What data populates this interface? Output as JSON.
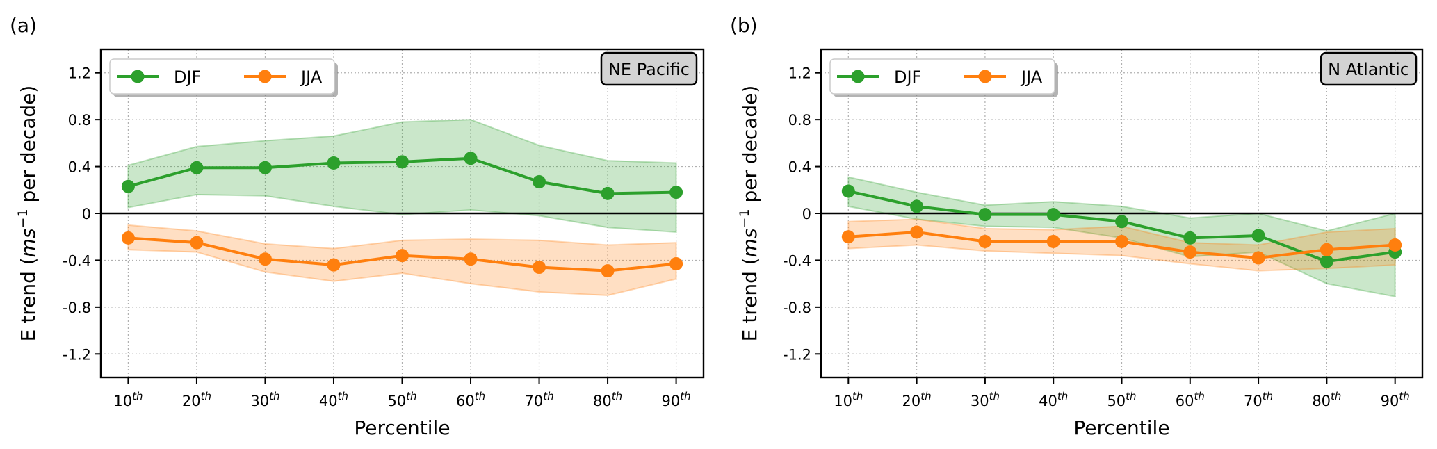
{
  "figure": {
    "panels": [
      "a",
      "b"
    ]
  },
  "chart_data": [
    {
      "type": "line",
      "panel_label": "(a)",
      "annotation": "NE Pacific",
      "title": "",
      "xlabel": "Percentile",
      "ylabel": "E trend (ms⁻¹ per decade)",
      "ylabel_parts": {
        "prefix": "E trend (",
        "unit_main": "ms",
        "unit_sup": "−1",
        "suffix": " per decade)"
      },
      "categories": [
        "10",
        "20",
        "30",
        "40",
        "50",
        "60",
        "70",
        "80",
        "90"
      ],
      "category_suffix": "th",
      "ylim": [
        -1.4,
        1.4
      ],
      "yticks": [
        1.2,
        0.8,
        0.4,
        0,
        -0.4,
        -0.8,
        -1.2
      ],
      "ytick_labels": [
        "1.2",
        "0.8",
        "0.4",
        "0",
        "-0.4",
        "-0.8",
        "-1.2"
      ],
      "grid": true,
      "zero_line": true,
      "legend": {
        "placement": "upper-left",
        "entries": [
          "DJF",
          "JJA"
        ]
      },
      "series": [
        {
          "name": "DJF",
          "color": "#2ca02c",
          "values": [
            0.23,
            0.39,
            0.39,
            0.43,
            0.44,
            0.47,
            0.27,
            0.17,
            0.18
          ],
          "band_upper": [
            0.41,
            0.57,
            0.62,
            0.66,
            0.78,
            0.8,
            0.58,
            0.45,
            0.43
          ],
          "band_lower": [
            0.05,
            0.16,
            0.15,
            0.06,
            -0.01,
            0.03,
            -0.02,
            -0.12,
            -0.16
          ]
        },
        {
          "name": "JJA",
          "color": "#ff7f0e",
          "values": [
            -0.21,
            -0.25,
            -0.39,
            -0.44,
            -0.36,
            -0.39,
            -0.46,
            -0.49,
            -0.43
          ],
          "band_upper": [
            -0.1,
            -0.15,
            -0.26,
            -0.3,
            -0.23,
            -0.22,
            -0.23,
            -0.27,
            -0.25
          ],
          "band_lower": [
            -0.31,
            -0.33,
            -0.5,
            -0.58,
            -0.51,
            -0.6,
            -0.67,
            -0.7,
            -0.56
          ]
        }
      ]
    },
    {
      "type": "line",
      "panel_label": "(b)",
      "annotation": "N Atlantic",
      "title": "",
      "xlabel": "Percentile",
      "ylabel": "E trend (ms⁻¹ per decade)",
      "ylabel_parts": {
        "prefix": "E trend (",
        "unit_main": "ms",
        "unit_sup": "−1",
        "suffix": " per decade)"
      },
      "categories": [
        "10",
        "20",
        "30",
        "40",
        "50",
        "60",
        "70",
        "80",
        "90"
      ],
      "category_suffix": "th",
      "ylim": [
        -1.4,
        1.4
      ],
      "yticks": [
        1.2,
        0.8,
        0.4,
        0,
        -0.4,
        -0.8,
        -1.2
      ],
      "ytick_labels": [
        "1.2",
        "0.8",
        "0.4",
        "0",
        "-0.4",
        "-0.8",
        "-1.2"
      ],
      "grid": true,
      "zero_line": true,
      "legend": {
        "placement": "upper-left",
        "entries": [
          "DJF",
          "JJA"
        ]
      },
      "series": [
        {
          "name": "DJF",
          "color": "#2ca02c",
          "values": [
            0.19,
            0.06,
            -0.01,
            -0.01,
            -0.07,
            -0.21,
            -0.19,
            -0.41,
            -0.33
          ],
          "band_upper": [
            0.31,
            0.18,
            0.07,
            0.1,
            0.06,
            -0.04,
            0.0,
            -0.15,
            0.0
          ],
          "band_lower": [
            0.06,
            -0.05,
            -0.11,
            -0.12,
            -0.21,
            -0.37,
            -0.33,
            -0.6,
            -0.71
          ]
        },
        {
          "name": "JJA",
          "color": "#ff7f0e",
          "values": [
            -0.2,
            -0.16,
            -0.24,
            -0.24,
            -0.24,
            -0.33,
            -0.38,
            -0.31,
            -0.27
          ],
          "band_upper": [
            -0.07,
            -0.05,
            -0.13,
            -0.14,
            -0.11,
            -0.25,
            -0.27,
            -0.16,
            -0.13
          ],
          "band_lower": [
            -0.3,
            -0.27,
            -0.32,
            -0.34,
            -0.36,
            -0.43,
            -0.49,
            -0.47,
            -0.44
          ]
        }
      ]
    }
  ]
}
